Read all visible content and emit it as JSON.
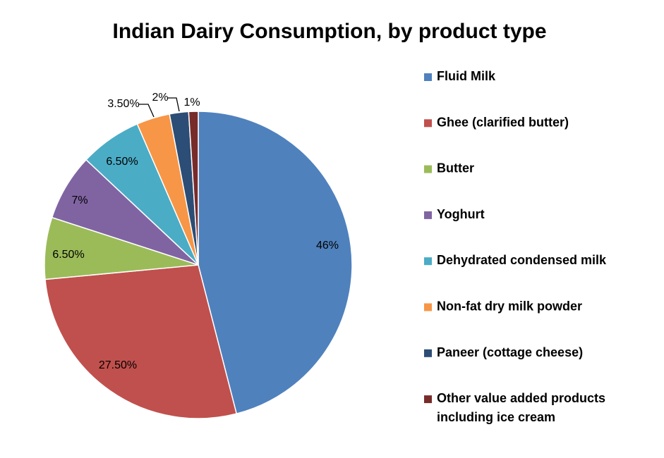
{
  "chart_data": {
    "type": "pie",
    "title": "Indian Dairy Consumption, by product type",
    "legend_position": "right",
    "slices": [
      {
        "label": "Fluid Milk",
        "value": 46,
        "display": "46%",
        "color": "#4F81BD"
      },
      {
        "label": "Ghee (clarified butter)",
        "value": 27.5,
        "display": "27.50%",
        "color": "#C0504D"
      },
      {
        "label": "Butter",
        "value": 6.5,
        "display": "6.50%",
        "color": "#9BBB59"
      },
      {
        "label": "Yoghurt",
        "value": 7,
        "display": "7%",
        "color": "#8064A2"
      },
      {
        "label": "Dehydrated condensed milk",
        "value": 6.5,
        "display": "6.50%",
        "color": "#4BACC6"
      },
      {
        "label": "Non-fat dry milk powder",
        "value": 3.5,
        "display": "3.50%",
        "color": "#F79646"
      },
      {
        "label": "Paneer (cottage cheese)",
        "value": 2,
        "display": "2%",
        "color": "#2C4D75"
      },
      {
        "label": "Other value added products including ice cream",
        "value": 1,
        "display": "1%",
        "color": "#772C2A"
      }
    ]
  }
}
